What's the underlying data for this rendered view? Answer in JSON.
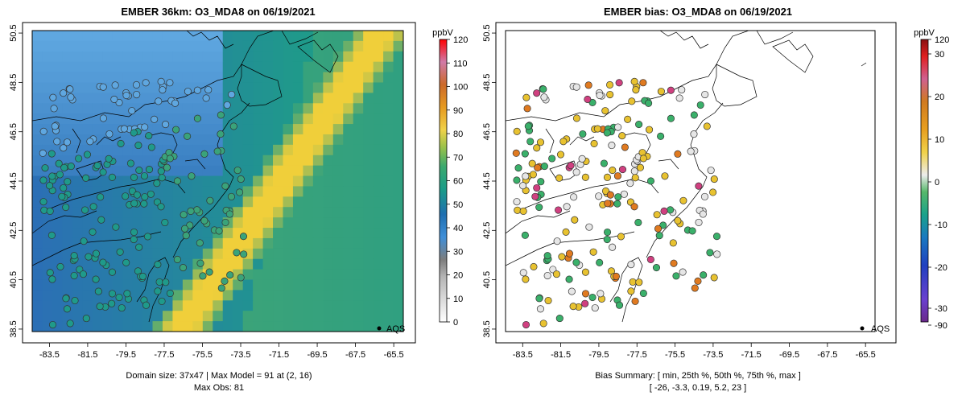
{
  "colors": {
    "ocean_dark": "#2b6fb5",
    "ocean_light": "#5fa7e0",
    "green": "#3aa37a",
    "teal": "#1f9a8a",
    "yellow": "#f0cf3a",
    "land_line": "#000000",
    "bias_neg": "#3ab06a",
    "bias_zero": "#e6e6e6",
    "bias_pos": "#e8c230",
    "bias_high": "#e07a20",
    "bias_max": "#d04080",
    "bias_min": "#7a3fd0"
  },
  "chart_data": [
    {
      "type": "heatmap",
      "title": "EMBER 36km: O3_MDA8 on 06/19/2021",
      "unit": "ppbV",
      "x_ticks": [
        "-83.5",
        "-81.5",
        "-79.5",
        "-77.5",
        "-75.5",
        "-73.5",
        "-71.5",
        "-69.5",
        "-67.5",
        "-65.5"
      ],
      "y_ticks": [
        "38.5",
        "40.5",
        "42.5",
        "44.5",
        "46.5",
        "48.5",
        "50.5"
      ],
      "xlim": [
        -84.4,
        -65.0
      ],
      "ylim": [
        38.4,
        50.6
      ],
      "colorbar": {
        "min": 0,
        "max": 120,
        "ticks": [
          "0",
          "10",
          "20",
          "30",
          "40",
          "50",
          "60",
          "70",
          "80",
          "90",
          "100",
          "110",
          "120"
        ]
      },
      "legend_marker": "AQS",
      "footer": [
        "Domain size: 37x47 | Max Model = 91 at (2, 16)",
        "Max Obs: 81"
      ],
      "domain_size": "37x47",
      "max_model": 91,
      "max_obs": 81
    },
    {
      "type": "scatter",
      "title": "EMBER bias: O3_MDA8 on 06/19/2021",
      "unit": "ppbV",
      "x_ticks": [
        "-83.5",
        "-81.5",
        "-79.5",
        "-77.5",
        "-75.5",
        "-73.5",
        "-71.5",
        "-69.5",
        "-67.5",
        "-65.5"
      ],
      "y_ticks": [
        "38.5",
        "40.5",
        "42.5",
        "44.5",
        "46.5",
        "48.5",
        "50.5"
      ],
      "xlim": [
        -84.4,
        -65.0
      ],
      "ylim": [
        38.4,
        50.6
      ],
      "colorbar": {
        "min": -90,
        "max": 120,
        "ticks": [
          "-90",
          "-30",
          "-20",
          "-10",
          "0",
          "10",
          "20",
          "30",
          "120"
        ]
      },
      "legend_marker": "AQS",
      "footer": [
        "Bias Summary: [ min, 25th %, 50th %, 75th %, max ]",
        "[ -26,  -3.3,  0.19,  5.2,  23 ]"
      ],
      "bias_summary": {
        "min": -26,
        "p25": -3.3,
        "p50": 0.19,
        "p75": 5.2,
        "max": 23
      }
    }
  ]
}
